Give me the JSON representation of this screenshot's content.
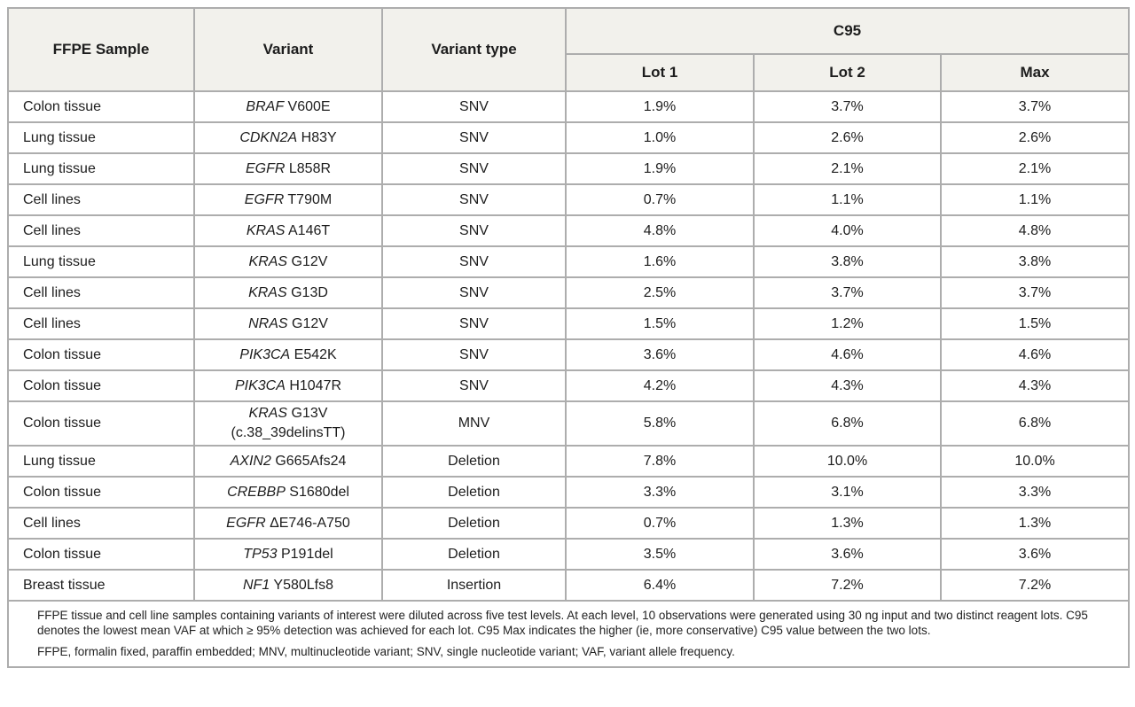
{
  "table": {
    "headers": {
      "sample": "FFPE Sample",
      "variant": "Variant",
      "variant_type": "Variant type",
      "c95_group": "C95",
      "lot1": "Lot 1",
      "lot2": "Lot 2",
      "max": "Max"
    },
    "rows": [
      {
        "sample": "Colon tissue",
        "gene": "BRAF",
        "mutation": "V600E",
        "variant_type": "SNV",
        "lot1": "1.9%",
        "lot2": "3.7%",
        "max": "3.7%"
      },
      {
        "sample": "Lung tissue",
        "gene": "CDKN2A",
        "mutation": "H83Y",
        "variant_type": "SNV",
        "lot1": "1.0%",
        "lot2": "2.6%",
        "max": "2.6%"
      },
      {
        "sample": "Lung tissue",
        "gene": "EGFR",
        "mutation": "L858R",
        "variant_type": "SNV",
        "lot1": "1.9%",
        "lot2": "2.1%",
        "max": "2.1%"
      },
      {
        "sample": "Cell lines",
        "gene": "EGFR",
        "mutation": "T790M",
        "variant_type": "SNV",
        "lot1": "0.7%",
        "lot2": "1.1%",
        "max": "1.1%"
      },
      {
        "sample": "Cell lines",
        "gene": "KRAS",
        "mutation": "A146T",
        "variant_type": "SNV",
        "lot1": "4.8%",
        "lot2": "4.0%",
        "max": "4.8%"
      },
      {
        "sample": "Lung tissue",
        "gene": "KRAS",
        "mutation": "G12V",
        "variant_type": "SNV",
        "lot1": "1.6%",
        "lot2": "3.8%",
        "max": "3.8%"
      },
      {
        "sample": "Cell lines",
        "gene": "KRAS",
        "mutation": "G13D",
        "variant_type": "SNV",
        "lot1": "2.5%",
        "lot2": "3.7%",
        "max": "3.7%"
      },
      {
        "sample": "Cell lines",
        "gene": "NRAS",
        "mutation": "G12V",
        "variant_type": "SNV",
        "lot1": "1.5%",
        "lot2": "1.2%",
        "max": "1.5%"
      },
      {
        "sample": "Colon tissue",
        "gene": "PIK3CA",
        "mutation": "E542K",
        "variant_type": "SNV",
        "lot1": "3.6%",
        "lot2": "4.6%",
        "max": "4.6%"
      },
      {
        "sample": "Colon tissue",
        "gene": "PIK3CA",
        "mutation": "H1047R",
        "variant_type": "SNV",
        "lot1": "4.2%",
        "lot2": "4.3%",
        "max": "4.3%"
      },
      {
        "sample": "Colon tissue",
        "gene": "KRAS",
        "mutation": "G13V",
        "mutation_note": "(c.38_39delinsTT)",
        "variant_type": "MNV",
        "lot1": "5.8%",
        "lot2": "6.8%",
        "max": "6.8%"
      },
      {
        "sample": "Lung tissue",
        "gene": "AXIN2",
        "mutation": "G665Afs24",
        "variant_type": "Deletion",
        "lot1": "7.8%",
        "lot2": "10.0%",
        "max": "10.0%"
      },
      {
        "sample": "Colon tissue",
        "gene": "CREBBP",
        "mutation": "S1680del",
        "variant_type": "Deletion",
        "lot1": "3.3%",
        "lot2": "3.1%",
        "max": "3.3%"
      },
      {
        "sample": "Cell lines",
        "gene": "EGFR",
        "mutation": "ΔE746-A750",
        "variant_type": "Deletion",
        "lot1": "0.7%",
        "lot2": "1.3%",
        "max": "1.3%"
      },
      {
        "sample": "Colon tissue",
        "gene": "TP53",
        "mutation": "P191del",
        "variant_type": "Deletion",
        "lot1": "3.5%",
        "lot2": "3.6%",
        "max": "3.6%"
      },
      {
        "sample": "Breast tissue",
        "gene": "NF1",
        "mutation": "Y580Lfs8",
        "variant_type": "Insertion",
        "lot1": "6.4%",
        "lot2": "7.2%",
        "max": "7.2%"
      }
    ]
  },
  "footnotes": {
    "methods": "FFPE tissue and cell line samples containing variants of interest were diluted across five test levels. At each level, 10 observations were generated using 30 ng input and two distinct reagent lots. C95 denotes the lowest mean VAF at which ≥ 95% detection was achieved for each lot. C95 Max indicates the higher (ie, more conservative) C95 value between the two lots.",
    "abbreviations": "FFPE, formalin fixed, paraffin embedded; MNV, multinucleotide variant; SNV, single nucleotide variant; VAF, variant allele frequency."
  },
  "colors": {
    "header_bg": "#f2f1ec",
    "row_bg": "#ffffff",
    "grid_border": "#adadad",
    "outer_border": "#8a8a8a",
    "text": "#1d1d1d"
  }
}
